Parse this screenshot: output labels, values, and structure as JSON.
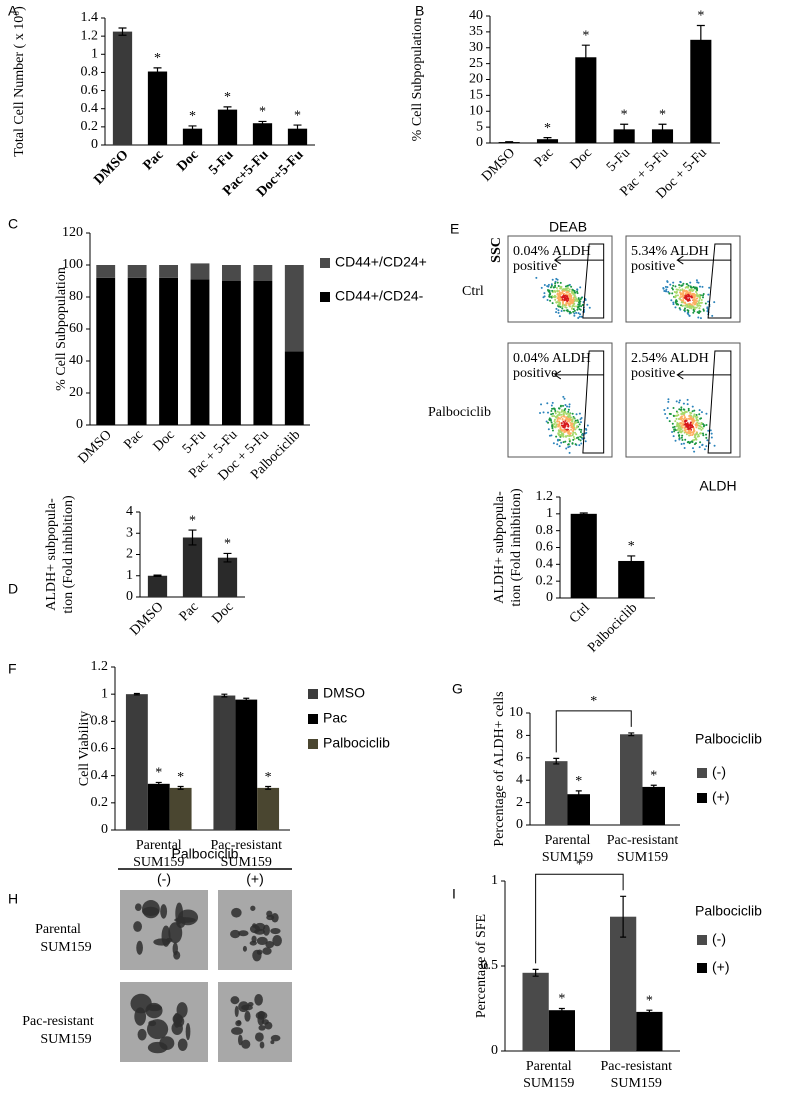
{
  "chart_data": [
    {
      "type": "bar",
      "panel": "A",
      "ylabel": "Total Cell Number ( x 10⁶)",
      "categories": [
        "DMSO",
        "Pac",
        "Doc",
        "5-Fu",
        "Pac+5-Fu",
        "Doc+5-Fu"
      ],
      "values": [
        1.25,
        0.81,
        0.18,
        0.39,
        0.24,
        0.18
      ],
      "errors": [
        0.04,
        0.04,
        0.03,
        0.03,
        0.02,
        0.04
      ],
      "significance": [
        null,
        "*",
        "*",
        "*",
        "*",
        "*"
      ],
      "colors": [
        "#3a3a3a",
        "#000000",
        "#000000",
        "#000000",
        "#000000",
        "#000000"
      ],
      "ylim": [
        0,
        1.4
      ],
      "yticks": [
        0,
        0.2,
        0.4,
        0.6,
        0.8,
        1,
        1.2,
        1.4
      ]
    },
    {
      "type": "bar",
      "panel": "B",
      "ylabel": "% Cell Subpopulation",
      "categories": [
        "DMSO",
        "Pac",
        "Doc",
        "5-Fu",
        "Pac + 5-Fu",
        "Doc + 5-Fu"
      ],
      "values": [
        0.3,
        1.2,
        27,
        4.3,
        4.3,
        32.5
      ],
      "errors": [
        0.1,
        0.5,
        3.8,
        1.6,
        1.6,
        4.5
      ],
      "significance": [
        null,
        "*",
        "*",
        "*",
        "*",
        "*"
      ],
      "colors": [
        "#000000",
        "#000000",
        "#000000",
        "#000000",
        "#000000",
        "#000000"
      ],
      "ylim": [
        0,
        40
      ],
      "yticks": [
        0,
        5,
        10,
        15,
        20,
        25,
        30,
        35,
        40
      ]
    },
    {
      "type": "stacked_bar",
      "panel": "C",
      "ylabel": "% Cell Subpopulation",
      "categories": [
        "DMSO",
        "Pac",
        "Doc",
        "5-Fu",
        "Pac + 5-Fu",
        "Doc + 5-Fu",
        "Palbociclib"
      ],
      "series": [
        {
          "name": "CD44+/CD24-",
          "color": "#000000",
          "values": [
            92,
            92,
            92,
            91,
            90,
            90,
            46
          ]
        },
        {
          "name": "CD44+/CD24+",
          "color": "#4a4a4a",
          "values": [
            8,
            8,
            8,
            10,
            10,
            10,
            54
          ]
        }
      ],
      "ylim": [
        0,
        120
      ],
      "yticks": [
        0,
        20,
        40,
        60,
        80,
        100,
        120
      ]
    },
    {
      "type": "bar",
      "panel": "D",
      "ylabel": [
        "ALDH+ subpopula-",
        "tion (Fold inhibition)"
      ],
      "categories": [
        "DMSO",
        "Pac",
        "Doc"
      ],
      "values": [
        1,
        2.8,
        1.85
      ],
      "errors": [
        0.03,
        0.35,
        0.2
      ],
      "significance": [
        null,
        "*",
        "*"
      ],
      "colors": [
        "#2a2a2a",
        "#2a2a2a",
        "#2a2a2a"
      ],
      "ylim": [
        0,
        4
      ],
      "yticks": [
        0,
        1,
        2,
        3,
        4
      ]
    },
    {
      "type": "flow_cytometry",
      "panel": "E",
      "column_title": "DEAB",
      "y_axis": "SSC",
      "x_axis": "ALDH",
      "rows": [
        "Ctrl",
        "Palbociclib"
      ],
      "gates": [
        [
          "0.04% ALDH",
          "positive"
        ],
        [
          "5.34% ALDH",
          "positive"
        ],
        [
          "0.04% ALDH",
          "positive"
        ],
        [
          "2.54% ALDH",
          "positive"
        ]
      ]
    },
    {
      "type": "bar",
      "ylabel": [
        "ALDH+ subpopula-",
        "tion (Fold inhibition)"
      ],
      "categories": [
        "Ctrl",
        "Palbociclib"
      ],
      "values": [
        1,
        0.44
      ],
      "errors": [
        0.01,
        0.06
      ],
      "significance": [
        null,
        "*"
      ],
      "colors": [
        "#000000",
        "#000000"
      ],
      "ylim": [
        0,
        1.2
      ],
      "yticks": [
        0,
        0.2,
        0.4,
        0.6,
        0.8,
        1,
        1.2
      ]
    },
    {
      "type": "grouped_bar",
      "panel": "F",
      "ylabel": "Cell Viability",
      "categories": [
        [
          "Parental",
          "SUM159"
        ],
        [
          "Pac-resistant",
          "SUM159"
        ]
      ],
      "series": [
        {
          "name": "DMSO",
          "color": "#3c3c3c",
          "values": [
            1.0,
            0.99
          ],
          "errors": [
            0.005,
            0.01
          ],
          "significance": [
            null,
            null
          ]
        },
        {
          "name": "Pac",
          "color": "#000000",
          "values": [
            0.34,
            0.96
          ],
          "errors": [
            0.01,
            0.01
          ],
          "significance": [
            "*",
            null
          ]
        },
        {
          "name": "Palbociclib",
          "color": "#4a4630",
          "values": [
            0.31,
            0.31
          ],
          "errors": [
            0.01,
            0.01
          ],
          "significance": [
            "*",
            "*"
          ]
        }
      ],
      "ylim": [
        0,
        1.2
      ],
      "yticks": [
        0,
        0.2,
        0.4,
        0.6,
        0.8,
        1,
        1.2
      ]
    },
    {
      "type": "grouped_bar",
      "panel": "G",
      "ylabel": "Percentage of ALDH+ cells",
      "legend_title": "Palbociclib",
      "bracket_label": "*",
      "categories": [
        [
          "Parental",
          "SUM159"
        ],
        [
          "Pac-resistant",
          "SUM159"
        ]
      ],
      "series": [
        {
          "name": "(-)",
          "color": "#4a4a4a",
          "values": [
            5.7,
            8.1
          ],
          "errors": [
            0.25,
            0.12
          ],
          "significance": [
            null,
            null
          ]
        },
        {
          "name": "(+)",
          "color": "#000000",
          "values": [
            2.75,
            3.4
          ],
          "errors": [
            0.3,
            0.15
          ],
          "significance": [
            "*",
            "*"
          ]
        }
      ],
      "ylim": [
        0,
        10
      ],
      "yticks": [
        0,
        2,
        4,
        6,
        8,
        10
      ]
    },
    {
      "type": "micrographs",
      "panel": "H",
      "title": "Palbociclib",
      "columns": [
        "(-)",
        "(+)"
      ],
      "rows": [
        [
          "Parental",
          "SUM159"
        ],
        [
          "Pac-resistant",
          "SUM159"
        ]
      ]
    },
    {
      "type": "grouped_bar",
      "panel": "I",
      "ylabel": "Percentage of SFE",
      "legend_title": "Palbociclib",
      "bracket_label": "*",
      "categories": [
        [
          "Parental",
          "SUM159"
        ],
        [
          "Pac-resistant",
          "SUM159"
        ]
      ],
      "series": [
        {
          "name": "(-)",
          "color": "#4a4a4a",
          "values": [
            0.46,
            0.79
          ],
          "errors": [
            0.02,
            0.12
          ],
          "significance": [
            null,
            null
          ]
        },
        {
          "name": "(+)",
          "color": "#000000",
          "values": [
            0.24,
            0.23
          ],
          "errors": [
            0.01,
            0.01
          ],
          "significance": [
            "*",
            "*"
          ]
        }
      ],
      "ylim": [
        0,
        1
      ],
      "yticks": [
        0,
        0.5,
        1
      ]
    }
  ]
}
